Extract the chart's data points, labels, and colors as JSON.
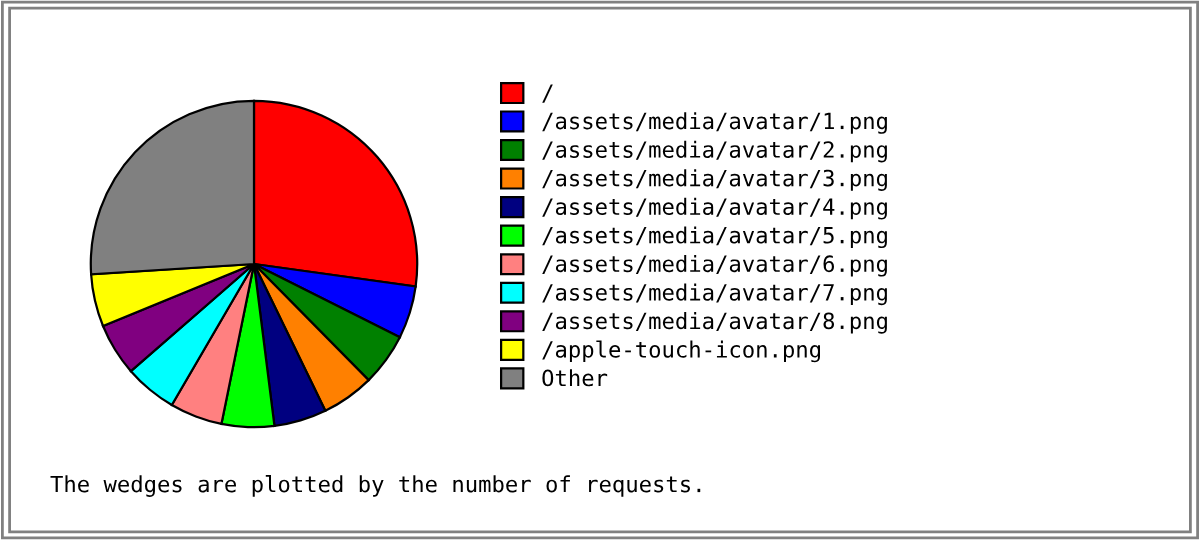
{
  "chart_data": {
    "type": "pie",
    "categories": [
      "/",
      "/assets/media/avatar/1.png",
      "/assets/media/avatar/2.png",
      "/assets/media/avatar/3.png",
      "/assets/media/avatar/4.png",
      "/assets/media/avatar/5.png",
      "/assets/media/avatar/6.png",
      "/assets/media/avatar/7.png",
      "/assets/media/avatar/8.png",
      "/apple-touch-icon.png",
      "Other"
    ],
    "values": [
      27.2,
      5.2,
      5.2,
      5.2,
      5.2,
      5.2,
      5.2,
      5.2,
      5.2,
      5.2,
      26
    ],
    "colors": [
      "#ff0000",
      "#0000ff",
      "#008000",
      "#ff8000",
      "#000080",
      "#00ff00",
      "#ff8080",
      "#00ffff",
      "#800080",
      "#ffff00",
      "#808080"
    ],
    "legend": "right",
    "annotations": [
      "The wedges are plotted by the number of requests."
    ]
  }
}
